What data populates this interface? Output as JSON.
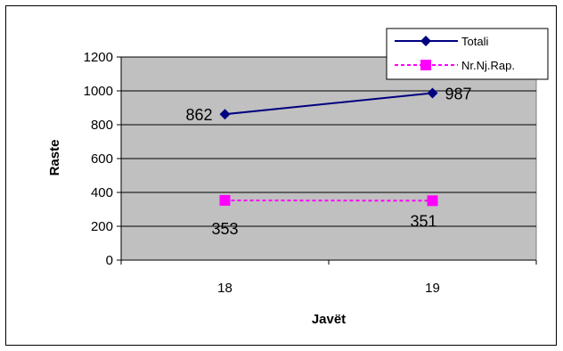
{
  "chart_data": {
    "type": "line",
    "categories": [
      "18",
      "19"
    ],
    "xlabel": "Javët",
    "ylabel": "Raste",
    "ylim": [
      0,
      1200
    ],
    "yticks": [
      "0",
      "200",
      "400",
      "600",
      "800",
      "1000",
      "1200"
    ],
    "grid": true,
    "legend_position": "top-right",
    "series": [
      {
        "name": "Totali",
        "values": [
          862,
          987
        ],
        "data_labels": [
          "862",
          "987"
        ],
        "color": "#000080",
        "marker": "diamond",
        "line_style": "solid"
      },
      {
        "name": "Nr.Nj.Rap.",
        "values": [
          353,
          351
        ],
        "data_labels": [
          "353",
          "351"
        ],
        "color": "#ff00ff",
        "marker": "square",
        "line_style": "dashed"
      }
    ],
    "plot_background": "#c0c0c0"
  }
}
